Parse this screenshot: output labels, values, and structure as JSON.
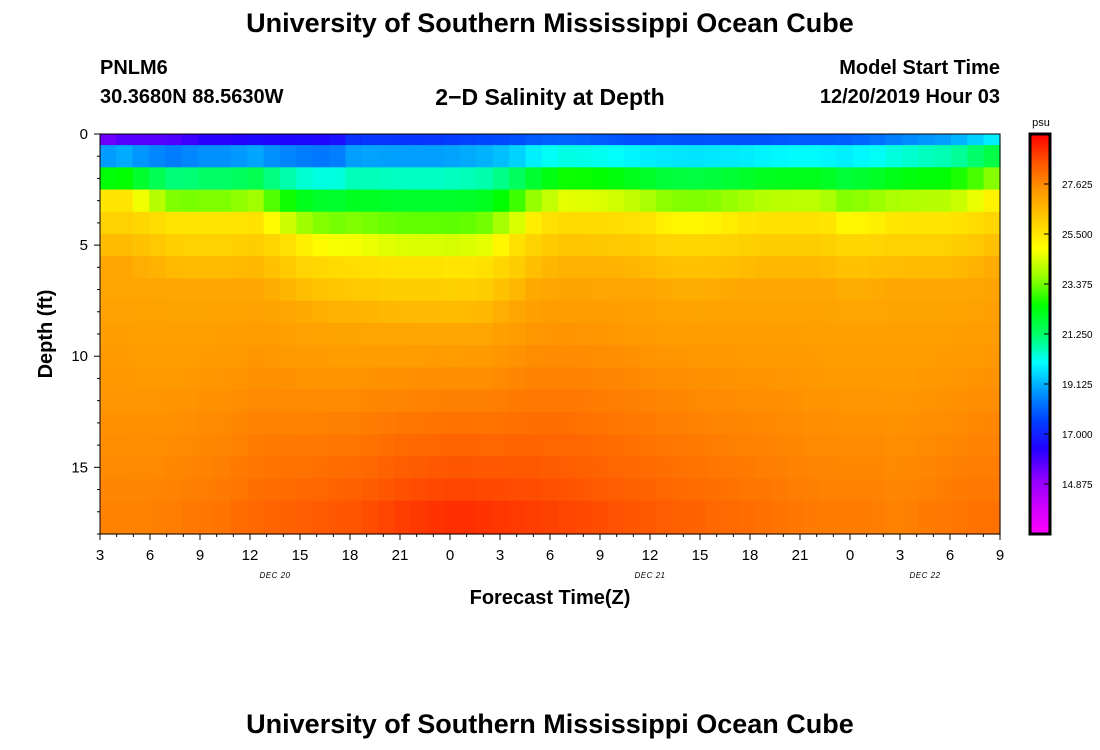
{
  "header": {
    "title": "University of Southern Mississippi Ocean Cube",
    "station_id": "PNLM6",
    "station_coords": "30.3680N 88.5630W",
    "chart_title": "2−D Salinity at Depth",
    "model_start_label": "Model Start Time",
    "model_start_value": "12/20/2019 Hour 03"
  },
  "footer": {
    "title": "University of Southern Mississippi Ocean Cube"
  },
  "colors": {
    "scale": [
      "#ff00ff",
      "#cc00ff",
      "#8800ff",
      "#2200ff",
      "#0044ff",
      "#0099ff",
      "#00ffff",
      "#00ff66",
      "#00ff00",
      "#99ff00",
      "#ffff00",
      "#ffcc00",
      "#ff9900",
      "#ff5500",
      "#ff0000"
    ]
  },
  "chart_data": {
    "type": "heatmap",
    "title": "2-D Salinity at Depth",
    "xlabel": "Forecast Time(Z)",
    "ylabel": "Depth (ft)",
    "ylim": [
      0,
      18
    ],
    "y_ticks": [
      0,
      5,
      10,
      15
    ],
    "y_tick_labels": [
      "0",
      "5",
      "10",
      "15"
    ],
    "x_tick_labels": [
      "3",
      "6",
      "9",
      "12",
      "15",
      "18",
      "21",
      "0",
      "3",
      "6",
      "9",
      "12",
      "15",
      "18",
      "21",
      "0",
      "3",
      "6",
      "9"
    ],
    "date_labels": [
      {
        "label": "DEC 20",
        "at_tick": 3.5
      },
      {
        "label": "DEC 21",
        "at_tick": 11
      },
      {
        "label": "DEC 22",
        "at_tick": 16.5
      }
    ],
    "colorbar": {
      "unit": "psu",
      "range": [
        12.75,
        29.75
      ],
      "tick_values": [
        14.875,
        17.0,
        19.125,
        21.25,
        23.375,
        25.5,
        27.625
      ],
      "tick_labels": [
        "14.875",
        "17.000",
        "19.125",
        "21.250",
        "23.375",
        "25.500",
        "27.625"
      ]
    },
    "grid": {
      "n_time_steps": 55,
      "n_depth_levels": 18,
      "layer_depths_ft": [
        0.0,
        0.5,
        1.5,
        2.5,
        3.5,
        4.5,
        5.5,
        6.5,
        7.5,
        8.5,
        9.5,
        10.5,
        11.5,
        12.5,
        13.5,
        14.5,
        15.5,
        16.5,
        18.0
      ]
    },
    "profile_model": {
      "mixed_layer_top_ft": [
        3.0,
        3.0,
        3.5,
        4.0,
        4.0,
        4.0,
        3.8,
        4.5,
        5.2,
        5.5,
        5.6,
        5.8,
        5.9,
        5.9,
        6.0,
        5.8,
        5.0,
        4.0,
        3.5,
        3.5,
        3.6,
        3.8,
        4.2,
        4.3,
        4.2,
        4.0,
        3.8,
        3.8,
        3.8,
        4.3,
        4.2,
        4.0,
        4.0,
        4.0,
        3.6,
        3.0
      ],
      "surface_salinity_psu": [
        13.5,
        14.0,
        14.2,
        14.5,
        15.0,
        15.0,
        15.2,
        15.3,
        15.5,
        15.5,
        16.5,
        16.5,
        16.5,
        16.5,
        16.7,
        16.8,
        16.8,
        16.9,
        16.9,
        16.8,
        16.7,
        16.6,
        16.8,
        16.8,
        16.8,
        16.7,
        16.7,
        16.8,
        16.8,
        17.0,
        17.2,
        17.5,
        17.8,
        18.0,
        18.5,
        19.0
      ],
      "thermocline_thickness_ft": 3.0,
      "upper_layer_psu": 25.5,
      "bottom_salinity_psu": [
        27.8,
        27.8,
        27.8,
        27.9,
        28.0,
        28.1,
        28.3,
        28.4,
        28.5,
        28.6,
        28.7,
        28.9,
        29.1,
        29.2,
        29.3,
        29.2,
        29.1,
        29.0,
        28.9,
        28.8,
        28.7,
        28.6,
        28.5,
        28.4,
        28.3,
        28.2,
        28.1,
        28.0,
        27.9,
        27.9,
        27.9,
        27.8,
        27.9,
        28.0,
        28.1,
        28.1
      ]
    }
  }
}
